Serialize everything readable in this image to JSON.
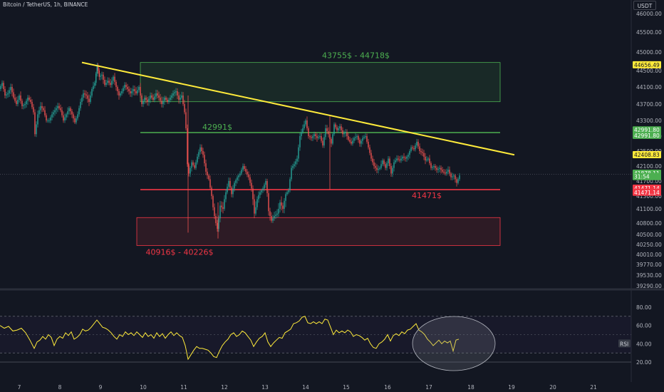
{
  "header": {
    "title": "Bitcoin / TetherUS, 1h, BINANCE",
    "currency": "USDT"
  },
  "chart_data": [
    {
      "type": "candlestick",
      "title": "Bitcoin / TetherUS, 1h, BINANCE",
      "x_ticks": [
        "7",
        "8",
        "9",
        "10",
        "11",
        "12",
        "13",
        "14",
        "15",
        "16",
        "17",
        "18",
        "19",
        "20",
        "21"
      ],
      "y_ticks": [
        46000,
        45500,
        45000,
        44500,
        44100,
        43700,
        43300,
        42900,
        42500,
        42100,
        41700,
        41300,
        41100,
        40800,
        40500,
        40250,
        40010,
        39770,
        39530,
        39290
      ],
      "price_path": [
        [
          0,
          44050
        ],
        [
          4,
          44200
        ],
        [
          8,
          43900
        ],
        [
          12,
          43950
        ],
        [
          16,
          44100
        ],
        [
          20,
          43850
        ],
        [
          24,
          43700
        ],
        [
          28,
          43900
        ],
        [
          32,
          43650
        ],
        [
          36,
          43700
        ],
        [
          40,
          43850
        ],
        [
          44,
          43750
        ],
        [
          48,
          43500
        ],
        [
          50,
          42950
        ],
        [
          54,
          43450
        ],
        [
          58,
          43650
        ],
        [
          62,
          43550
        ],
        [
          66,
          43300
        ],
        [
          70,
          43300
        ],
        [
          74,
          43450
        ],
        [
          78,
          43550
        ],
        [
          82,
          43650
        ],
        [
          86,
          43550
        ],
        [
          90,
          43300
        ],
        [
          94,
          43450
        ],
        [
          98,
          43600
        ],
        [
          102,
          43450
        ],
        [
          106,
          43250
        ],
        [
          110,
          43450
        ],
        [
          114,
          43750
        ],
        [
          118,
          43950
        ],
        [
          122,
          43900
        ],
        [
          126,
          43750
        ],
        [
          130,
          44050
        ],
        [
          134,
          44200
        ],
        [
          137,
          44650
        ],
        [
          140,
          44350
        ],
        [
          144,
          44400
        ],
        [
          148,
          44150
        ],
        [
          152,
          44250
        ],
        [
          156,
          44150
        ],
        [
          160,
          44350
        ],
        [
          164,
          44100
        ],
        [
          168,
          43900
        ],
        [
          172,
          44000
        ],
        [
          176,
          44150
        ],
        [
          180,
          44050
        ],
        [
          184,
          43950
        ],
        [
          188,
          44050
        ],
        [
          192,
          43950
        ],
        [
          196,
          44100
        ],
        [
          200,
          43700
        ],
        [
          204,
          43850
        ],
        [
          208,
          43750
        ],
        [
          212,
          43900
        ],
        [
          216,
          43800
        ],
        [
          220,
          43950
        ],
        [
          224,
          43850
        ],
        [
          228,
          43700
        ],
        [
          232,
          43850
        ],
        [
          236,
          43750
        ],
        [
          240,
          43850
        ],
        [
          244,
          43950
        ],
        [
          248,
          44000
        ],
        [
          252,
          43800
        ],
        [
          256,
          43900
        ],
        [
          260,
          43500
        ],
        [
          262,
          43100
        ],
        [
          264,
          42150
        ],
        [
          266,
          41900
        ],
        [
          270,
          42200
        ],
        [
          274,
          42050
        ],
        [
          278,
          42350
        ],
        [
          282,
          42600
        ],
        [
          286,
          42400
        ],
        [
          290,
          41950
        ],
        [
          294,
          41750
        ],
        [
          298,
          41300
        ],
        [
          302,
          40950
        ],
        [
          306,
          40650
        ],
        [
          310,
          41150
        ],
        [
          314,
          41100
        ],
        [
          318,
          41400
        ],
        [
          322,
          41700
        ],
        [
          326,
          41350
        ],
        [
          330,
          41650
        ],
        [
          334,
          41800
        ],
        [
          338,
          41900
        ],
        [
          342,
          42100
        ],
        [
          346,
          41950
        ],
        [
          350,
          41800
        ],
        [
          354,
          41500
        ],
        [
          358,
          41000
        ],
        [
          362,
          41250
        ],
        [
          366,
          41400
        ],
        [
          370,
          41500
        ],
        [
          374,
          41700
        ],
        [
          378,
          41050
        ],
        [
          382,
          40850
        ],
        [
          386,
          40950
        ],
        [
          390,
          41000
        ],
        [
          394,
          41200
        ],
        [
          398,
          41100
        ],
        [
          402,
          41350
        ],
        [
          406,
          41450
        ],
        [
          410,
          42050
        ],
        [
          414,
          42150
        ],
        [
          418,
          42300
        ],
        [
          422,
          42900
        ],
        [
          426,
          43100
        ],
        [
          430,
          43300
        ],
        [
          434,
          42900
        ],
        [
          438,
          42850
        ],
        [
          442,
          42950
        ],
        [
          446,
          42850
        ],
        [
          450,
          42900
        ],
        [
          454,
          42650
        ],
        [
          458,
          43100
        ],
        [
          462,
          42950
        ],
        [
          466,
          42700
        ],
        [
          470,
          43200
        ],
        [
          474,
          43050
        ],
        [
          478,
          43150
        ],
        [
          482,
          42950
        ],
        [
          486,
          43000
        ],
        [
          490,
          42800
        ],
        [
          494,
          42700
        ],
        [
          498,
          42850
        ],
        [
          502,
          42900
        ],
        [
          506,
          42700
        ],
        [
          510,
          42850
        ],
        [
          514,
          42900
        ],
        [
          518,
          42600
        ],
        [
          522,
          42300
        ],
        [
          526,
          42100
        ],
        [
          530,
          42000
        ],
        [
          534,
          42050
        ],
        [
          538,
          42250
        ],
        [
          542,
          42050
        ],
        [
          546,
          42300
        ],
        [
          550,
          41900
        ],
        [
          554,
          42200
        ],
        [
          558,
          42300
        ],
        [
          562,
          42250
        ],
        [
          566,
          42350
        ],
        [
          570,
          42300
        ],
        [
          574,
          42400
        ],
        [
          578,
          42600
        ],
        [
          582,
          42550
        ],
        [
          586,
          42750
        ],
        [
          590,
          42500
        ],
        [
          594,
          42450
        ],
        [
          598,
          42250
        ],
        [
          602,
          42300
        ],
        [
          606,
          42050
        ],
        [
          610,
          42100
        ],
        [
          614,
          42000
        ],
        [
          618,
          42050
        ],
        [
          622,
          41950
        ],
        [
          626,
          41900
        ],
        [
          630,
          42000
        ],
        [
          634,
          41800
        ],
        [
          638,
          41850
        ],
        [
          642,
          41650
        ],
        [
          646,
          41850
        ]
      ],
      "annotations": [
        {
          "text": "43755$ - 44718$",
          "color": "#4caf50",
          "kind": "zone",
          "y_from": 43755,
          "y_to": 44718,
          "x_from": 197,
          "x_to": 702
        },
        {
          "text": "42991$",
          "color": "#4caf50",
          "kind": "hline",
          "y": 42991,
          "x_from": 197,
          "x_to": 702
        },
        {
          "text": "41471$",
          "color": "#f23645",
          "kind": "hline",
          "y": 41471,
          "x_from": 197,
          "x_to": 702
        },
        {
          "text": "40916$ - 40226$",
          "color": "#f23645",
          "kind": "zone",
          "y_from": 40226,
          "y_to": 40916,
          "x_from": 192,
          "x_to": 702
        }
      ],
      "trendline": {
        "color": "#ffeb3b",
        "from": [
          115,
          44718
        ],
        "to": [
          722,
          42400
        ]
      },
      "price_tags": [
        {
          "text": "44656.49",
          "bg": "#ffeb3b",
          "fg": "#131722",
          "y": 44656
        },
        {
          "text": "42991.80",
          "bg": "#4caf50",
          "fg": "#ffffff",
          "y": 43060
        },
        {
          "text": "42991.80",
          "bg": "#4caf50",
          "fg": "#ffffff",
          "y": 42920
        },
        {
          "text": "42408.83",
          "bg": "#ffeb3b",
          "fg": "#131722",
          "y": 42405
        },
        {
          "text": "41878.11",
          "bg": "#4caf50",
          "fg": "#ffffff",
          "y": 41910
        },
        {
          "text": "31:54",
          "bg": "#4caf50",
          "fg": "#ffffff",
          "y": 41820
        },
        {
          "text": "41471.14",
          "bg": "#f23645",
          "fg": "#ffffff",
          "y": 41510
        },
        {
          "text": "41471.14",
          "bg": "#f23645",
          "fg": "#ffffff",
          "y": 41400
        }
      ],
      "colors": {
        "up": "#26a69a",
        "down": "#ef5350",
        "trend": "#ffeb3b",
        "support": "#f23645",
        "resistance": "#4caf50"
      }
    },
    {
      "type": "line",
      "title": "RSI",
      "y_ticks": [
        80,
        60,
        40,
        20
      ],
      "rsi_bands": [
        70,
        30
      ],
      "rsi_label": "RSI",
      "rsi_path": [
        [
          0,
          60
        ],
        [
          6,
          57
        ],
        [
          12,
          59
        ],
        [
          18,
          54
        ],
        [
          24,
          55
        ],
        [
          30,
          57
        ],
        [
          36,
          52
        ],
        [
          42,
          44
        ],
        [
          48,
          35
        ],
        [
          52,
          42
        ],
        [
          56,
          44
        ],
        [
          60,
          48
        ],
        [
          64,
          45
        ],
        [
          68,
          50
        ],
        [
          72,
          47
        ],
        [
          76,
          38
        ],
        [
          80,
          45
        ],
        [
          84,
          48
        ],
        [
          88,
          46
        ],
        [
          92,
          52
        ],
        [
          96,
          49
        ],
        [
          100,
          53
        ],
        [
          104,
          45
        ],
        [
          108,
          47
        ],
        [
          112,
          50
        ],
        [
          116,
          56
        ],
        [
          120,
          54
        ],
        [
          124,
          55
        ],
        [
          128,
          58
        ],
        [
          132,
          62
        ],
        [
          136,
          66
        ],
        [
          140,
          62
        ],
        [
          144,
          58
        ],
        [
          148,
          57
        ],
        [
          152,
          55
        ],
        [
          156,
          52
        ],
        [
          160,
          48
        ],
        [
          164,
          45
        ],
        [
          168,
          50
        ],
        [
          172,
          48
        ],
        [
          176,
          53
        ],
        [
          180,
          50
        ],
        [
          184,
          52
        ],
        [
          188,
          49
        ],
        [
          192,
          53
        ],
        [
          196,
          50
        ],
        [
          200,
          47
        ],
        [
          204,
          52
        ],
        [
          208,
          48
        ],
        [
          212,
          50
        ],
        [
          216,
          46
        ],
        [
          220,
          52
        ],
        [
          224,
          48
        ],
        [
          228,
          51
        ],
        [
          232,
          46
        ],
        [
          236,
          50
        ],
        [
          240,
          53
        ],
        [
          244,
          49
        ],
        [
          248,
          52
        ],
        [
          252,
          49
        ],
        [
          256,
          47
        ],
        [
          260,
          38
        ],
        [
          264,
          23
        ],
        [
          268,
          28
        ],
        [
          272,
          33
        ],
        [
          276,
          37
        ],
        [
          280,
          35
        ],
        [
          284,
          35
        ],
        [
          288,
          34
        ],
        [
          292,
          33
        ],
        [
          296,
          30
        ],
        [
          300,
          26
        ],
        [
          304,
          25
        ],
        [
          308,
          32
        ],
        [
          312,
          38
        ],
        [
          316,
          42
        ],
        [
          320,
          45
        ],
        [
          324,
          50
        ],
        [
          328,
          52
        ],
        [
          332,
          48
        ],
        [
          336,
          50
        ],
        [
          340,
          54
        ],
        [
          344,
          52
        ],
        [
          348,
          48
        ],
        [
          352,
          44
        ],
        [
          356,
          37
        ],
        [
          360,
          42
        ],
        [
          364,
          46
        ],
        [
          368,
          48
        ],
        [
          372,
          52
        ],
        [
          376,
          42
        ],
        [
          380,
          37
        ],
        [
          384,
          41
        ],
        [
          388,
          44
        ],
        [
          392,
          47
        ],
        [
          396,
          46
        ],
        [
          400,
          52
        ],
        [
          404,
          54
        ],
        [
          408,
          56
        ],
        [
          412,
          62
        ],
        [
          416,
          63
        ],
        [
          420,
          65
        ],
        [
          424,
          69
        ],
        [
          428,
          70
        ],
        [
          432,
          63
        ],
        [
          436,
          62
        ],
        [
          440,
          64
        ],
        [
          444,
          62
        ],
        [
          448,
          64
        ],
        [
          452,
          62
        ],
        [
          456,
          67
        ],
        [
          460,
          66
        ],
        [
          464,
          58
        ],
        [
          468,
          50
        ],
        [
          472,
          55
        ],
        [
          476,
          52
        ],
        [
          480,
          54
        ],
        [
          484,
          52
        ],
        [
          488,
          55
        ],
        [
          492,
          53
        ],
        [
          496,
          48
        ],
        [
          500,
          50
        ],
        [
          504,
          49
        ],
        [
          508,
          47
        ],
        [
          512,
          44
        ],
        [
          516,
          46
        ],
        [
          520,
          40
        ],
        [
          524,
          36
        ],
        [
          528,
          35
        ],
        [
          532,
          40
        ],
        [
          536,
          42
        ],
        [
          540,
          45
        ],
        [
          544,
          50
        ],
        [
          548,
          43
        ],
        [
          552,
          49
        ],
        [
          556,
          51
        ],
        [
          560,
          49
        ],
        [
          564,
          53
        ],
        [
          568,
          51
        ],
        [
          572,
          55
        ],
        [
          576,
          56
        ],
        [
          580,
          59
        ],
        [
          584,
          62
        ],
        [
          588,
          55
        ],
        [
          592,
          53
        ],
        [
          596,
          50
        ],
        [
          600,
          45
        ],
        [
          604,
          42
        ],
        [
          608,
          38
        ],
        [
          612,
          41
        ],
        [
          616,
          44
        ],
        [
          620,
          40
        ],
        [
          624,
          43
        ],
        [
          628,
          41
        ],
        [
          632,
          43
        ],
        [
          636,
          32
        ],
        [
          640,
          44
        ],
        [
          644,
          45
        ]
      ]
    }
  ]
}
